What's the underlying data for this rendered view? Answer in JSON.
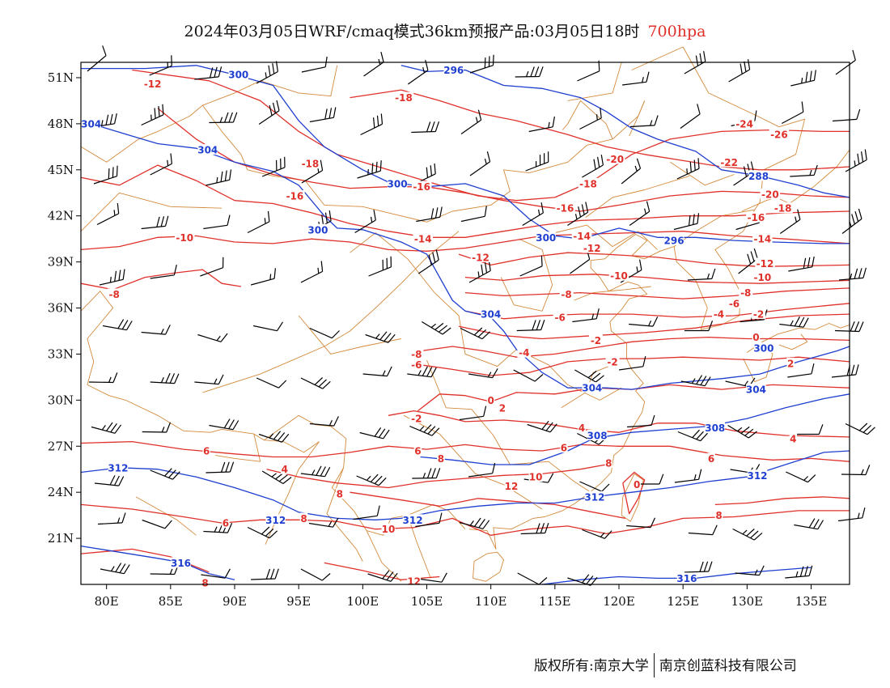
{
  "title": {
    "main": "2024年03月05日WRF/cmaq模式36km预报产品:03月05日18时",
    "level": "700hpa"
  },
  "footer": {
    "copyright": "版权所有:南京大学",
    "company": "南京创蓝科技有限公司"
  },
  "map": {
    "lon_range": [
      78,
      138
    ],
    "lat_range": [
      18,
      52
    ],
    "lon_ticks": [
      "80E",
      "85E",
      "90E",
      "95E",
      "100E",
      "105E",
      "110E",
      "115E",
      "120E",
      "125E",
      "130E",
      "135E"
    ],
    "lat_ticks": [
      "51N",
      "48N",
      "45N",
      "42N",
      "39N",
      "36N",
      "33N",
      "30N",
      "27N",
      "24N",
      "21N"
    ],
    "colors": {
      "temperature": "#e0302a",
      "height": "#1f3fd0",
      "border": "#d38a3c",
      "wind": "#000000",
      "title_level": "#e0302a"
    }
  },
  "temperature_labels": [
    {
      "text": "-12",
      "lon": 83.6,
      "lat": 50.6
    },
    {
      "text": "-18",
      "lon": 103.2,
      "lat": 49.7
    },
    {
      "text": "-24",
      "lon": 129.8,
      "lat": 48.0
    },
    {
      "text": "-26",
      "lon": 132.5,
      "lat": 47.3
    },
    {
      "text": "-20",
      "lon": 119.7,
      "lat": 45.7
    },
    {
      "text": "-22",
      "lon": 128.6,
      "lat": 45.5
    },
    {
      "text": "-18",
      "lon": 95.9,
      "lat": 45.4
    },
    {
      "text": "-16",
      "lon": 104.6,
      "lat": 43.9
    },
    {
      "text": "-18",
      "lon": 117.6,
      "lat": 44.1
    },
    {
      "text": "-16",
      "lon": 94.7,
      "lat": 43.3
    },
    {
      "text": "-20",
      "lon": 131.8,
      "lat": 43.4
    },
    {
      "text": "-18",
      "lon": 132.8,
      "lat": 42.5
    },
    {
      "text": "-16",
      "lon": 115.8,
      "lat": 42.5
    },
    {
      "text": "-16",
      "lon": 130.7,
      "lat": 41.9
    },
    {
      "text": "-10",
      "lon": 86.1,
      "lat": 40.6
    },
    {
      "text": "-14",
      "lon": 104.7,
      "lat": 40.5
    },
    {
      "text": "-14",
      "lon": 117.1,
      "lat": 40.7
    },
    {
      "text": "-14",
      "lon": 131.2,
      "lat": 40.5
    },
    {
      "text": "-12",
      "lon": 109.2,
      "lat": 39.3
    },
    {
      "text": "-12",
      "lon": 117.9,
      "lat": 39.9
    },
    {
      "text": "-12",
      "lon": 131.4,
      "lat": 38.9
    },
    {
      "text": "-10",
      "lon": 120.0,
      "lat": 38.1
    },
    {
      "text": "-10",
      "lon": 131.2,
      "lat": 38.0
    },
    {
      "text": "-8",
      "lon": 80.6,
      "lat": 36.9
    },
    {
      "text": "-8",
      "lon": 115.9,
      "lat": 36.9
    },
    {
      "text": "-8",
      "lon": 129.9,
      "lat": 37.0
    },
    {
      "text": "-6",
      "lon": 129.0,
      "lat": 36.3
    },
    {
      "text": "-6",
      "lon": 115.4,
      "lat": 35.4
    },
    {
      "text": "-4",
      "lon": 127.8,
      "lat": 35.6
    },
    {
      "text": "-2",
      "lon": 130.9,
      "lat": 35.6
    },
    {
      "text": "-4",
      "lon": 112.6,
      "lat": 33.1
    },
    {
      "text": "-2",
      "lon": 118.2,
      "lat": 33.9
    },
    {
      "text": "0",
      "lon": 130.7,
      "lat": 34.1
    },
    {
      "text": "-2",
      "lon": 119.5,
      "lat": 32.5
    },
    {
      "text": "2",
      "lon": 133.4,
      "lat": 32.4
    },
    {
      "text": "-8",
      "lon": 104.2,
      "lat": 33.0
    },
    {
      "text": "-6",
      "lon": 104.2,
      "lat": 32.3
    },
    {
      "text": "0",
      "lon": 110.0,
      "lat": 30.0
    },
    {
      "text": "2",
      "lon": 110.9,
      "lat": 29.5
    },
    {
      "text": "-2",
      "lon": 104.2,
      "lat": 28.8
    },
    {
      "text": "4",
      "lon": 117.1,
      "lat": 28.2
    },
    {
      "text": "4",
      "lon": 133.6,
      "lat": 27.5
    },
    {
      "text": "6",
      "lon": 87.8,
      "lat": 26.7
    },
    {
      "text": "6",
      "lon": 104.3,
      "lat": 26.7
    },
    {
      "text": "6",
      "lon": 115.7,
      "lat": 26.9
    },
    {
      "text": "8",
      "lon": 106.1,
      "lat": 26.2
    },
    {
      "text": "8",
      "lon": 119.2,
      "lat": 25.9
    },
    {
      "text": "6",
      "lon": 127.2,
      "lat": 26.2
    },
    {
      "text": "4",
      "lon": 93.9,
      "lat": 25.5
    },
    {
      "text": "10",
      "lon": 113.5,
      "lat": 25.0
    },
    {
      "text": "12",
      "lon": 111.6,
      "lat": 24.4
    },
    {
      "text": "0",
      "lon": 121.4,
      "lat": 24.5
    },
    {
      "text": "8",
      "lon": 98.2,
      "lat": 23.9
    },
    {
      "text": "6",
      "lon": 89.3,
      "lat": 22.0
    },
    {
      "text": "8",
      "lon": 95.4,
      "lat": 22.3
    },
    {
      "text": "10",
      "lon": 102.0,
      "lat": 21.6
    },
    {
      "text": "8",
      "lon": 127.8,
      "lat": 22.5
    },
    {
      "text": "12",
      "lon": 104.0,
      "lat": 18.2
    },
    {
      "text": "8",
      "lon": 87.7,
      "lat": 18.1
    }
  ],
  "height_labels": [
    {
      "text": "300",
      "lon": 90.3,
      "lat": 51.2
    },
    {
      "text": "296",
      "lon": 107.1,
      "lat": 51.5
    },
    {
      "text": "304",
      "lon": 78.8,
      "lat": 48.0
    },
    {
      "text": "304",
      "lon": 87.9,
      "lat": 46.3
    },
    {
      "text": "300",
      "lon": 102.7,
      "lat": 44.1
    },
    {
      "text": "288",
      "lon": 130.9,
      "lat": 44.6
    },
    {
      "text": "300",
      "lon": 96.5,
      "lat": 41.1
    },
    {
      "text": "300",
      "lon": 114.3,
      "lat": 40.6
    },
    {
      "text": "296",
      "lon": 124.3,
      "lat": 40.4
    },
    {
      "text": "304",
      "lon": 110.0,
      "lat": 35.6
    },
    {
      "text": "300",
      "lon": 131.3,
      "lat": 33.4
    },
    {
      "text": "304",
      "lon": 117.9,
      "lat": 30.8
    },
    {
      "text": "304",
      "lon": 130.7,
      "lat": 30.7
    },
    {
      "text": "308",
      "lon": 127.5,
      "lat": 28.2
    },
    {
      "text": "308",
      "lon": 118.3,
      "lat": 27.7
    },
    {
      "text": "312",
      "lon": 80.9,
      "lat": 25.6
    },
    {
      "text": "312",
      "lon": 130.8,
      "lat": 25.1
    },
    {
      "text": "312",
      "lon": 118.1,
      "lat": 23.7
    },
    {
      "text": "312",
      "lon": 93.2,
      "lat": 22.2
    },
    {
      "text": "312",
      "lon": 103.9,
      "lat": 22.2
    },
    {
      "text": "316",
      "lon": 85.8,
      "lat": 19.4
    },
    {
      "text": "316",
      "lon": 125.3,
      "lat": 18.4
    }
  ]
}
